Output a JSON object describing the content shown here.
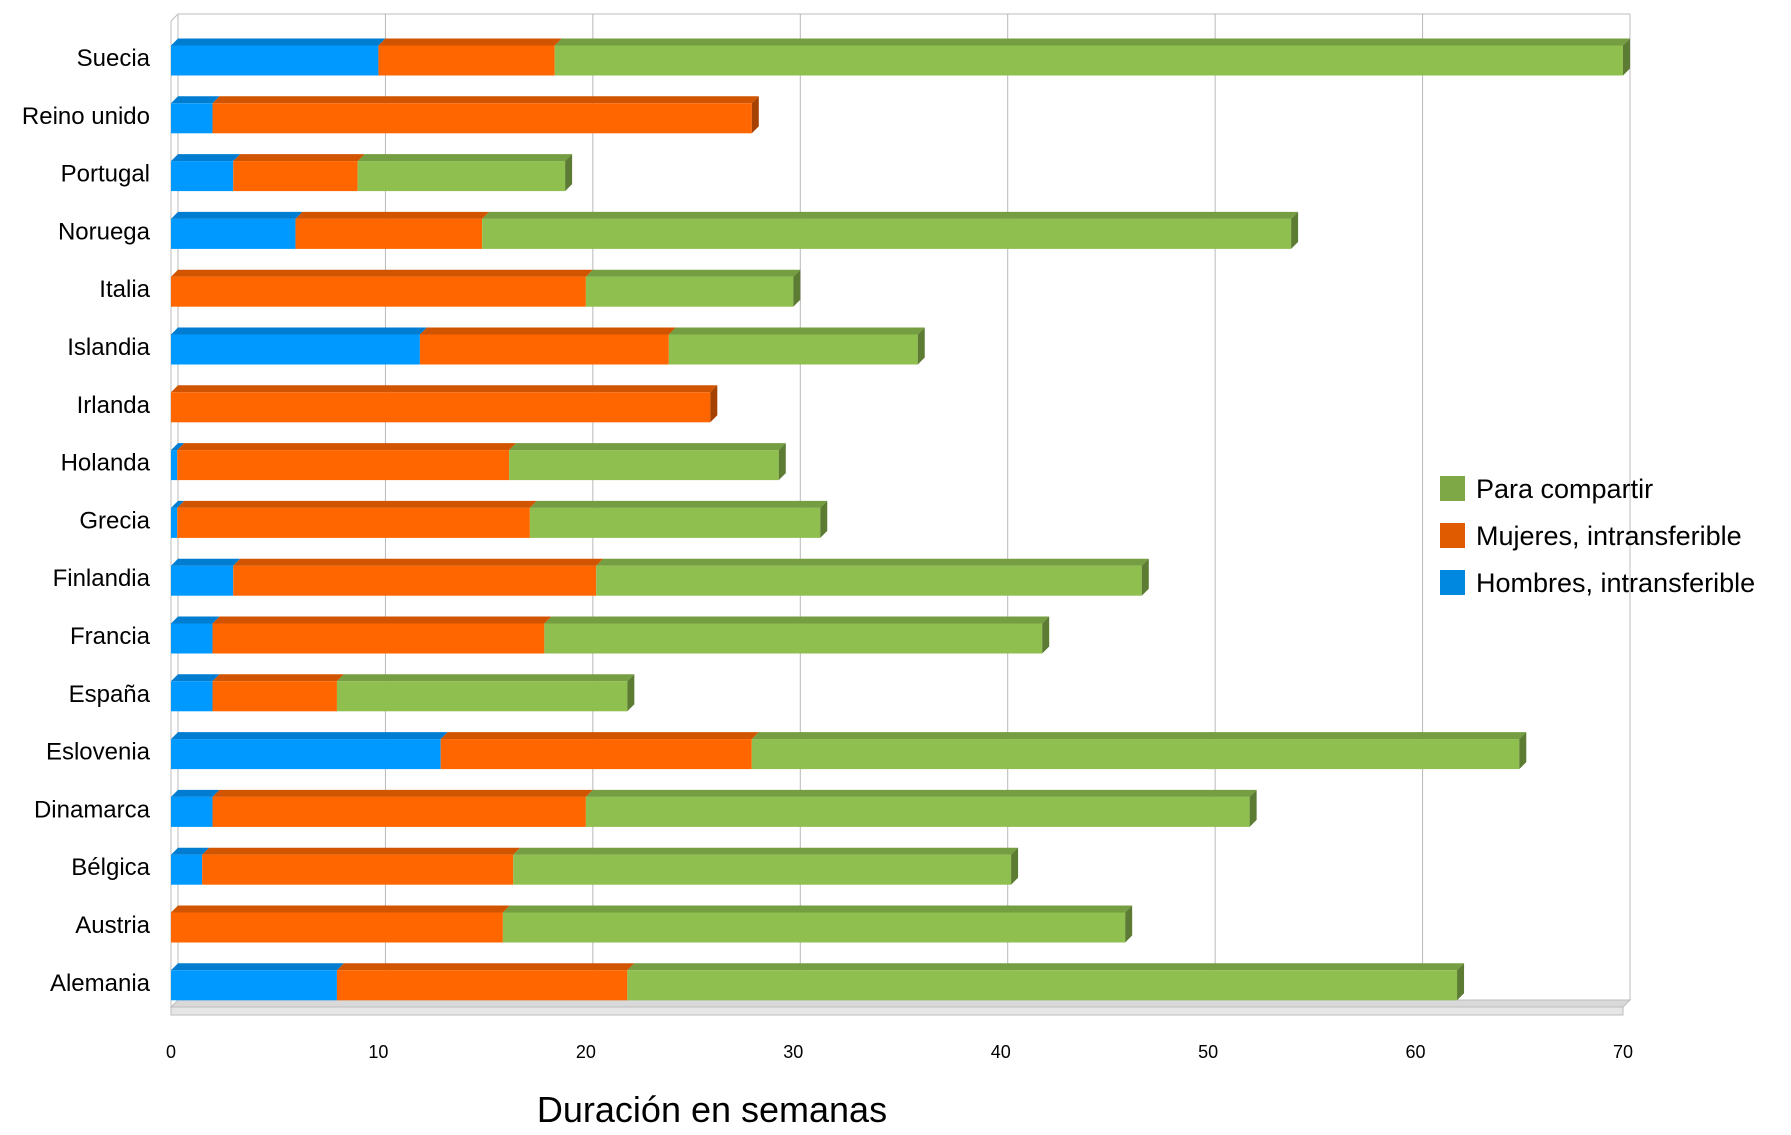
{
  "chart_data": {
    "type": "bar",
    "orientation": "horizontal",
    "stacked": true,
    "style": "3d",
    "title": "",
    "xlabel": "Duración en semanas",
    "ylabel": "",
    "xlim": [
      0,
      70
    ],
    "xticks": [
      0,
      10,
      20,
      30,
      40,
      50,
      60,
      70
    ],
    "grid": true,
    "legend_position": "right",
    "categories": [
      "Suecia",
      "Reino unido",
      "Portugal",
      "Noruega",
      "Italia",
      "Islandia",
      "Irlanda",
      "Holanda",
      "Grecia",
      "Finlandia",
      "Francia",
      "España",
      "Eslovenia",
      "Dinamarca",
      "Bélgica",
      "Austria",
      "Alemania"
    ],
    "series": [
      {
        "name": "Hombres, intransferible",
        "color": "#0099ff",
        "values": [
          10,
          2,
          3,
          6,
          0,
          12,
          0,
          0.3,
          0.3,
          3,
          2,
          2,
          13,
          2,
          1.5,
          0,
          8
        ]
      },
      {
        "name": "Mujeres, intransferible",
        "color": "#ff6600",
        "values": [
          8.5,
          26,
          6,
          9,
          20,
          12,
          26,
          16,
          17,
          17.5,
          16,
          6,
          15,
          18,
          15,
          16,
          14
        ]
      },
      {
        "name": "Para compartir",
        "color": "#8fbf4f",
        "values": [
          51.5,
          0,
          10,
          39,
          10,
          12,
          0,
          13,
          14,
          26.3,
          24,
          14,
          37,
          32,
          24,
          30,
          40
        ]
      }
    ],
    "legend_order": [
      "Para compartir",
      "Mujeres, intransferible",
      "Hombres, intransferible"
    ]
  }
}
